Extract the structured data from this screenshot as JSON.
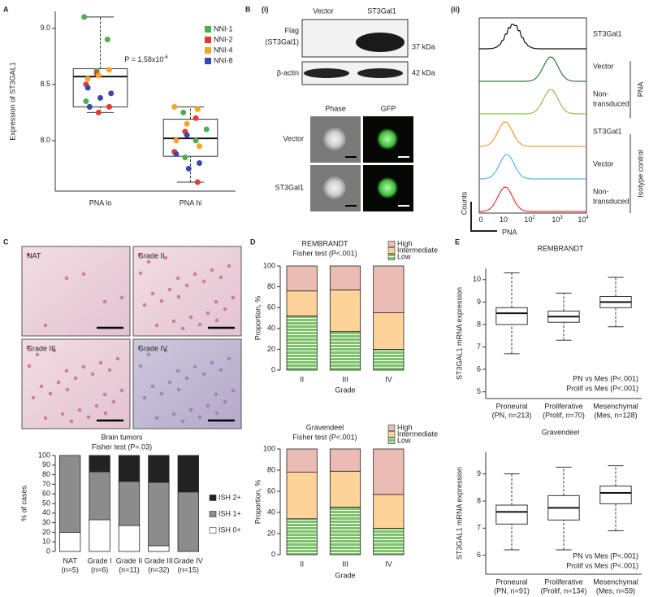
{
  "panel_labels": [
    "A",
    "B",
    "(i)",
    "(ii)",
    "C",
    "D",
    "E"
  ],
  "blot": {
    "columns": [
      "Vector",
      "ST3Gal1"
    ],
    "rows": [
      {
        "label": [
          "Flag",
          "(ST3Gal1)"
        ],
        "size": "37 kDa"
      },
      {
        "label": [
          "β-actin"
        ],
        "size": "42 kDa"
      }
    ]
  },
  "microscopy": {
    "columns": [
      "Phase",
      "GFP"
    ],
    "rows": [
      "Vector",
      "ST3Gal1"
    ]
  },
  "flow": {
    "rows": [
      {
        "label": [
          "ST3Gal1"
        ],
        "color": "#111111"
      },
      {
        "label": [
          "Vector"
        ],
        "color": "#2e7d32"
      },
      {
        "label": [
          "Non-",
          "transduced"
        ],
        "color": "#8bc34a"
      },
      {
        "label": [
          "ST3Gal1"
        ],
        "color": "#f39c3c"
      },
      {
        "label": [
          "Vector"
        ],
        "color": "#4fb8e6"
      },
      {
        "label": [
          "Non-",
          "transduced"
        ],
        "color": "#e53935"
      }
    ],
    "groups": [
      "PNA",
      "Isotype control"
    ],
    "y_label": "Counts",
    "x_label": "PNA",
    "x_ticks": [
      {
        "base": "0"
      },
      {
        "base": "10"
      },
      {
        "base": "10",
        "exp": "2"
      },
      {
        "base": "10",
        "exp": "3"
      },
      {
        "base": "10",
        "exp": "4"
      }
    ]
  },
  "histology": {
    "labels": [
      "NAT",
      "Grade II",
      "Grade III",
      "Grade IV"
    ]
  },
  "chart_data": [
    {
      "type": "box",
      "ylabel": "Expression of ST3GAL1",
      "categories": [
        "PNA lo",
        "PNA hi"
      ],
      "ylim": [
        7.55,
        9.15
      ],
      "yticks": [
        {
          "value": 8,
          "label": "8.0"
        },
        {
          "value": 8.5,
          "label": "8.5"
        },
        {
          "value": 9,
          "label": "9.0"
        }
      ],
      "boxes": [
        {
          "whisker_low": 8.25,
          "q1": 8.3,
          "median": 8.57,
          "q3": 8.64,
          "whisker_high": 9.1
        },
        {
          "whisker_low": 7.63,
          "q1": 7.86,
          "median": 8.02,
          "q3": 8.19,
          "whisker_high": 8.3
        }
      ],
      "annotation": {
        "text": "P = 1.58x10",
        "exp": "-6"
      },
      "series": [
        {
          "name": "NNI-1",
          "color": "#4caf50",
          "values": [
            [
              9.1,
              8.9,
              8.62,
              8.35
            ],
            [
              8.25,
              8.1,
              8.0,
              7.85
            ]
          ]
        },
        {
          "name": "NNI-2",
          "color": "#e53935",
          "values": [
            [
              8.6,
              8.5,
              8.3,
              8.25
            ],
            [
              8.2,
              8.08,
              7.9,
              7.63
            ]
          ]
        },
        {
          "name": "NNI-4",
          "color": "#f5a623",
          "values": [
            [
              8.63,
              8.58,
              8.55
            ],
            [
              8.3,
              8.28,
              8.15,
              8.0,
              7.95
            ]
          ]
        },
        {
          "name": "NNI-8",
          "color": "#3949ab",
          "values": [
            [
              8.47,
              8.42,
              8.38,
              8.3
            ],
            [
              8.05,
              7.88,
              7.8,
              7.75
            ]
          ]
        }
      ]
    },
    {
      "type": "stacked_bar",
      "title": "Brain tumors",
      "subtitle": "Fisher test (P=.03)",
      "ylabel": "% of cases",
      "categories": [
        "NAT",
        "Grade I",
        "Grade II",
        "Grade III",
        "Grade IV"
      ],
      "category_notes": [
        "(n=5)",
        "(n=6)",
        "(n=11)",
        "(n=32)",
        "(n=15)"
      ],
      "ylim": [
        0,
        100
      ],
      "yticks": [
        0,
        10,
        20,
        30,
        40,
        50,
        60,
        70,
        80,
        90,
        100
      ],
      "series": [
        {
          "name": "ISH 0+",
          "color": "#ffffff",
          "values": [
            20,
            33,
            27,
            6,
            0
          ]
        },
        {
          "name": "ISH 1+",
          "color": "#8c8c8c",
          "values": [
            80,
            50,
            46,
            66,
            62
          ]
        },
        {
          "name": "ISH 2+",
          "color": "#222222",
          "values": [
            0,
            17,
            27,
            28,
            38
          ]
        }
      ]
    },
    {
      "type": "stacked_bar",
      "title": "REMBRANDT",
      "subtitle": "Fisher test (P<.001)",
      "ylabel": "Proportion, %",
      "xlabel": "Grade",
      "categories": [
        "II",
        "III",
        "IV"
      ],
      "ylim": [
        0,
        100
      ],
      "yticks": [
        0,
        20,
        40,
        60,
        80,
        100
      ],
      "series": [
        {
          "name": "Low",
          "color": "#7cc36a",
          "hatch": true,
          "values": [
            52,
            37,
            20
          ]
        },
        {
          "name": "Intermediate",
          "color": "#fdd39a",
          "values": [
            24,
            40,
            35
          ]
        },
        {
          "name": "High",
          "color": "#ebbcb3",
          "values": [
            24,
            23,
            45
          ]
        }
      ]
    },
    {
      "type": "stacked_bar",
      "title": "Gravendeel",
      "subtitle": "Fisher test (P<.001)",
      "ylabel": "Proportion, %",
      "xlabel": "Grade",
      "categories": [
        "II",
        "III",
        "IV"
      ],
      "ylim": [
        0,
        100
      ],
      "yticks": [
        0,
        20,
        40,
        60,
        80,
        100
      ],
      "series": [
        {
          "name": "Low",
          "color": "#7cc36a",
          "hatch": true,
          "values": [
            34,
            45,
            25
          ]
        },
        {
          "name": "Intermediate",
          "color": "#fdd39a",
          "values": [
            44,
            34,
            32
          ]
        },
        {
          "name": "High",
          "color": "#ebbcb3",
          "values": [
            22,
            21,
            43
          ]
        }
      ]
    },
    {
      "type": "box",
      "title": "REMBRANDT",
      "ylabel": "ST3GAL1 mRNA expression",
      "categories": [
        "Proneural",
        "Proliferative",
        "Mesenchymal"
      ],
      "category_notes": [
        "(PN, n=213)",
        "(Prolif, n=70)",
        "(Mes, n=128)"
      ],
      "ylim": [
        4.7,
        10.5
      ],
      "yticks": [
        5,
        6,
        7,
        8,
        9,
        10
      ],
      "boxes": [
        {
          "whisker_low": 6.7,
          "q1": 8.0,
          "median": 8.5,
          "q3": 8.75,
          "whisker_high": 10.3
        },
        {
          "whisker_low": 7.3,
          "q1": 8.1,
          "median": 8.35,
          "q3": 8.6,
          "whisker_high": 9.4
        },
        {
          "whisker_low": 7.9,
          "q1": 8.75,
          "median": 9.0,
          "q3": 9.25,
          "whisker_high": 10.1
        }
      ],
      "annotations": [
        "PN vs Mes (P<.001)",
        "Prolif vs Mes (P<.001)"
      ]
    },
    {
      "type": "box",
      "title": "Gravendeel",
      "ylabel": "ST3GAL1 mRNA expression",
      "categories": [
        "Proneural",
        "Proliferative",
        "Mesenchymal"
      ],
      "category_notes": [
        "(PN, n=91)",
        "(Prolif, n=134)",
        "(Mes, n=59)"
      ],
      "ylim": [
        5.3,
        9.8
      ],
      "yticks": [
        6,
        7,
        8,
        9
      ],
      "boxes": [
        {
          "whisker_low": 6.2,
          "q1": 7.15,
          "median": 7.6,
          "q3": 7.85,
          "whisker_high": 9.0
        },
        {
          "whisker_low": 6.2,
          "q1": 7.3,
          "median": 7.75,
          "q3": 8.2,
          "whisker_high": 9.25
        },
        {
          "whisker_low": 6.9,
          "q1": 7.9,
          "median": 8.3,
          "q3": 8.55,
          "whisker_high": 9.3
        }
      ],
      "annotations": [
        "PN vs Mes (P<.001)",
        "Prolif vs Mes (P<.001)"
      ]
    }
  ]
}
